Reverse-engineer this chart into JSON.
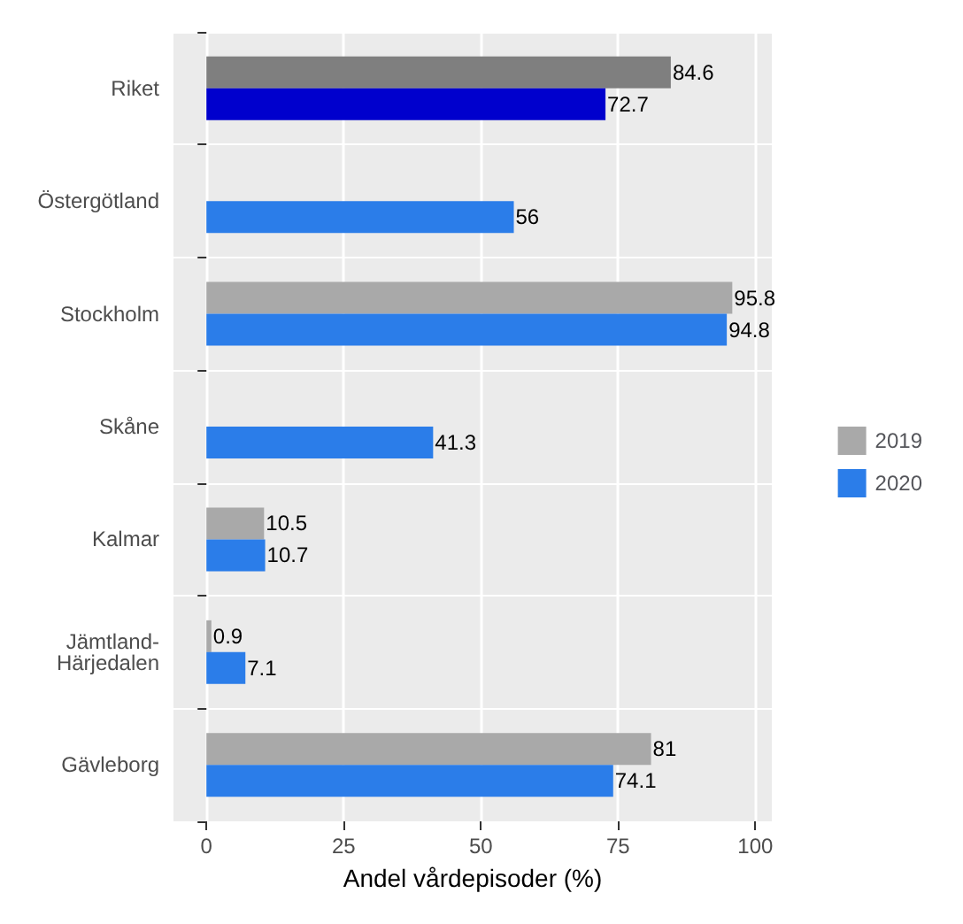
{
  "chart_data": {
    "type": "bar",
    "orientation": "horizontal",
    "xlabel": "Andel vårdepisoder (%)",
    "categories": [
      "Riket",
      "Östergötland",
      "Stockholm",
      "Skåne",
      "Kalmar",
      "Jämtland-Härjedalen",
      "Gävleborg"
    ],
    "series": [
      {
        "name": "2019",
        "color": "#a9a9a9",
        "colors": [
          "#7f7f7f",
          "#a9a9a9",
          "#a9a9a9",
          "#a9a9a9",
          "#a9a9a9",
          "#a9a9a9",
          "#a9a9a9"
        ],
        "values": [
          84.6,
          null,
          95.8,
          null,
          10.5,
          0.9,
          81
        ]
      },
      {
        "name": "2020",
        "color": "#2b7de9",
        "colors": [
          "#0000cd",
          "#2b7de9",
          "#2b7de9",
          "#2b7de9",
          "#2b7de9",
          "#2b7de9",
          "#2b7de9"
        ],
        "values": [
          72.7,
          56,
          94.8,
          41.3,
          10.7,
          7.1,
          74.1
        ]
      }
    ],
    "xlim": [
      -6,
      103
    ],
    "xticks": [
      0,
      25,
      50,
      75,
      100
    ],
    "grid": true,
    "legend": "right",
    "data_labels": true
  }
}
